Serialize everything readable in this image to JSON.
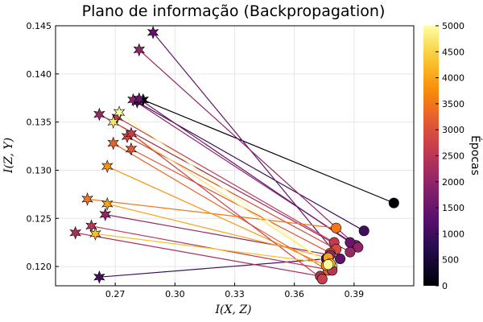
{
  "chart_data": {
    "type": "scatter",
    "title": "Plano de informação (Backpropagation)",
    "xlabel": "I(X, Z)",
    "ylabel": "I(Z, Y)",
    "xlim": [
      0.24,
      0.42
    ],
    "ylim": [
      0.118,
      0.145
    ],
    "xticks": [
      0.27,
      0.3,
      0.33,
      0.36,
      0.39
    ],
    "xtick_labels": [
      "0.27",
      "0.30",
      "0.33",
      "0.36",
      "0.39"
    ],
    "yticks": [
      0.12,
      0.125,
      0.13,
      0.135,
      0.14,
      0.145
    ],
    "ytick_labels": [
      "0.120",
      "0.125",
      "0.130",
      "0.135",
      "0.140",
      "0.145"
    ],
    "grid": true,
    "colorbar": {
      "label": "Épocas",
      "range": [
        0,
        5000
      ],
      "ticks": [
        0,
        500,
        1000,
        1500,
        2000,
        2500,
        3000,
        3500,
        4000,
        4500,
        5000
      ],
      "tick_labels": [
        "0",
        "500",
        "1000",
        "1500",
        "2000",
        "2500",
        "3000",
        "3500",
        "4000",
        "4500",
        "5000"
      ],
      "colormap": "inferno"
    },
    "markers": {
      "start": "circle",
      "end": "star"
    },
    "trajectories": [
      {
        "start": [
          0.41,
          0.1266
        ],
        "end": [
          0.284,
          0.1373
        ],
        "epoch": 0
      },
      {
        "start": [
          0.395,
          0.1237
        ],
        "end": [
          0.281,
          0.1371
        ],
        "epoch": 1000
      },
      {
        "start": [
          0.391,
          0.1222
        ],
        "end": [
          0.279,
          0.1373
        ],
        "epoch": 1900
      },
      {
        "start": [
          0.388,
          0.1225
        ],
        "end": [
          0.282,
          0.1374
        ],
        "epoch": 1500
      },
      {
        "start": [
          0.383,
          0.1208
        ],
        "end": [
          0.289,
          0.1443
        ],
        "epoch": 1400
      },
      {
        "start": [
          0.392,
          0.122
        ],
        "end": [
          0.282,
          0.1425
        ],
        "epoch": 2000
      },
      {
        "start": [
          0.388,
          0.1215
        ],
        "end": [
          0.262,
          0.1358
        ],
        "epoch": 2100
      },
      {
        "start": [
          0.376,
          0.1208
        ],
        "end": [
          0.262,
          0.1189
        ],
        "epoch": 1000
      },
      {
        "start": [
          0.38,
          0.1225
        ],
        "end": [
          0.271,
          0.1355
        ],
        "epoch": 2600
      },
      {
        "start": [
          0.381,
          0.1218
        ],
        "end": [
          0.276,
          0.1335
        ],
        "epoch": 2900
      },
      {
        "start": [
          0.378,
          0.1214
        ],
        "end": [
          0.278,
          0.1322
        ],
        "epoch": 3100
      },
      {
        "start": [
          0.381,
          0.124
        ],
        "end": [
          0.256,
          0.127
        ],
        "epoch": 3500
      },
      {
        "start": [
          0.378,
          0.1212
        ],
        "end": [
          0.265,
          0.1254
        ],
        "epoch": 2000
      },
      {
        "start": [
          0.377,
          0.1196
        ],
        "end": [
          0.269,
          0.1328
        ],
        "epoch": 3300
      },
      {
        "start": [
          0.376,
          0.1201
        ],
        "end": [
          0.266,
          0.1304
        ],
        "epoch": 3800
      },
      {
        "start": [
          0.379,
          0.12
        ],
        "end": [
          0.269,
          0.135
        ],
        "epoch": 4700
      },
      {
        "start": [
          0.379,
          0.1196
        ],
        "end": [
          0.258,
          0.1242
        ],
        "epoch": 2500
      },
      {
        "start": [
          0.373,
          0.119
        ],
        "end": [
          0.25,
          0.1235
        ],
        "epoch": 2300
      },
      {
        "start": [
          0.374,
          0.1187
        ],
        "end": [
          0.278,
          0.1338
        ],
        "epoch": 2700
      },
      {
        "start": [
          0.377,
          0.1209
        ],
        "end": [
          0.266,
          0.1265
        ],
        "epoch": 4000
      },
      {
        "start": [
          0.378,
          0.1203
        ],
        "end": [
          0.26,
          0.1234
        ],
        "epoch": 4300
      },
      {
        "start": [
          0.377,
          0.1202
        ],
        "end": [
          0.272,
          0.136
        ],
        "epoch": 4950
      }
    ]
  }
}
